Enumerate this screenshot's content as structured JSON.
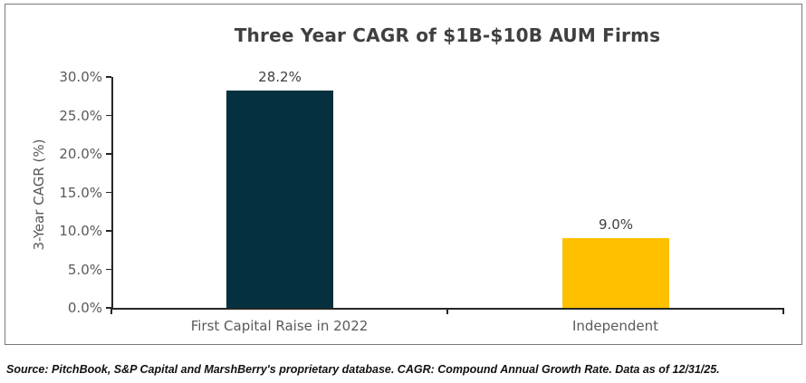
{
  "figure": {
    "source_note": "Source: PitchBook, S&P Capital and MarshBerry's proprietary database. CAGR: Compound Annual Growth Rate. Data as of 12/31/25."
  },
  "chart_data": {
    "type": "bar",
    "title": "Three Year CAGR of $1B-$10B AUM Firms",
    "categories": [
      "First Capital Raise in 2022",
      "Independent"
    ],
    "values": [
      28.2,
      9.0
    ],
    "value_labels": [
      "28.2%",
      "9.0%"
    ],
    "bar_colors": [
      "#04303f",
      "#ffc000"
    ],
    "xlabel": "",
    "ylabel": "3-Year CAGR (%)",
    "ylim": [
      0,
      30
    ],
    "ytick_labels": [
      "0.0%",
      "5.0%",
      "10.0%",
      "15.0%",
      "20.0%",
      "25.0%",
      "30.0%"
    ],
    "grid": false,
    "legend": false,
    "colors": {
      "title_text": "#404040",
      "axis_text": "#595959",
      "value_label_text": "#404040",
      "axis_line": "#262626",
      "box_border": "#7a7a7a"
    }
  }
}
